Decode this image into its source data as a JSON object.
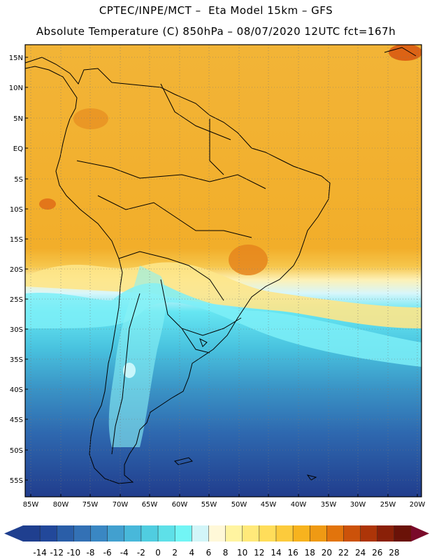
{
  "title_line1": "CPTEC/INPE/MCT –  Eta Model 15km – GFS",
  "title_line2": "Absolute Temperature (C) 850hPa – 08/07/2020 12UTC fct=167h",
  "lat_labels": [
    "15N",
    "10N",
    "5N",
    "EQ",
    "5S",
    "10S",
    "15S",
    "20S",
    "25S",
    "30S",
    "35S",
    "40S",
    "45S",
    "50S",
    "55S"
  ],
  "lon_labels": [
    "85W",
    "80W",
    "75W",
    "70W",
    "65W",
    "60W",
    "55W",
    "50W",
    "45W",
    "40W",
    "35W",
    "30W",
    "25W",
    "20W"
  ],
  "colorbar": {
    "values": [
      "-14",
      "-12",
      "-10",
      "-8",
      "-6",
      "-4",
      "-2",
      "0",
      "2",
      "4",
      "6",
      "8",
      "10",
      "12",
      "14",
      "16",
      "18",
      "20",
      "22",
      "24",
      "26",
      "28"
    ],
    "colors": [
      "#1f3f8f",
      "#22489a",
      "#2a5ea8",
      "#3371b5",
      "#3a87c3",
      "#42a0cf",
      "#48b8da",
      "#50cde0",
      "#5ee0e8",
      "#72f5f5",
      "#d2f5f8",
      "#fff8d8",
      "#fff4a0",
      "#ffe97a",
      "#ffdd5a",
      "#fccb3c",
      "#f7b31e",
      "#ef9a14",
      "#e2740c",
      "#cc520a",
      "#ad3508",
      "#8a2008",
      "#6a1208"
    ]
  }
}
